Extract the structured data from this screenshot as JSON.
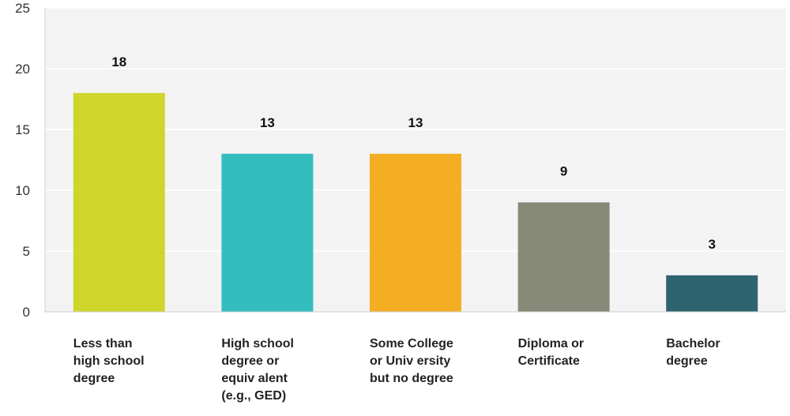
{
  "chart_data": {
    "type": "bar",
    "title": "",
    "xlabel": "",
    "ylabel": "",
    "ylim": [
      0,
      25
    ],
    "yticks": [
      0,
      5,
      10,
      15,
      20,
      25
    ],
    "grid": true,
    "categories": [
      [
        "Less than",
        "high school",
        "degree"
      ],
      [
        "High school",
        "degree or",
        "equiv alent",
        "(e.g., GED)"
      ],
      [
        "Some College",
        "or Univ ersity",
        "but no degree"
      ],
      [
        "Diploma or",
        "Certificate"
      ],
      [
        "Bachelor",
        "degree"
      ]
    ],
    "values": [
      18,
      13,
      13,
      9,
      3
    ],
    "colors": [
      "#cfd52b",
      "#33bdbf",
      "#f5ae23",
      "#888a78",
      "#2e6470"
    ],
    "plot_background": "#f3f3f3",
    "gridline_color": "#ffffff"
  }
}
